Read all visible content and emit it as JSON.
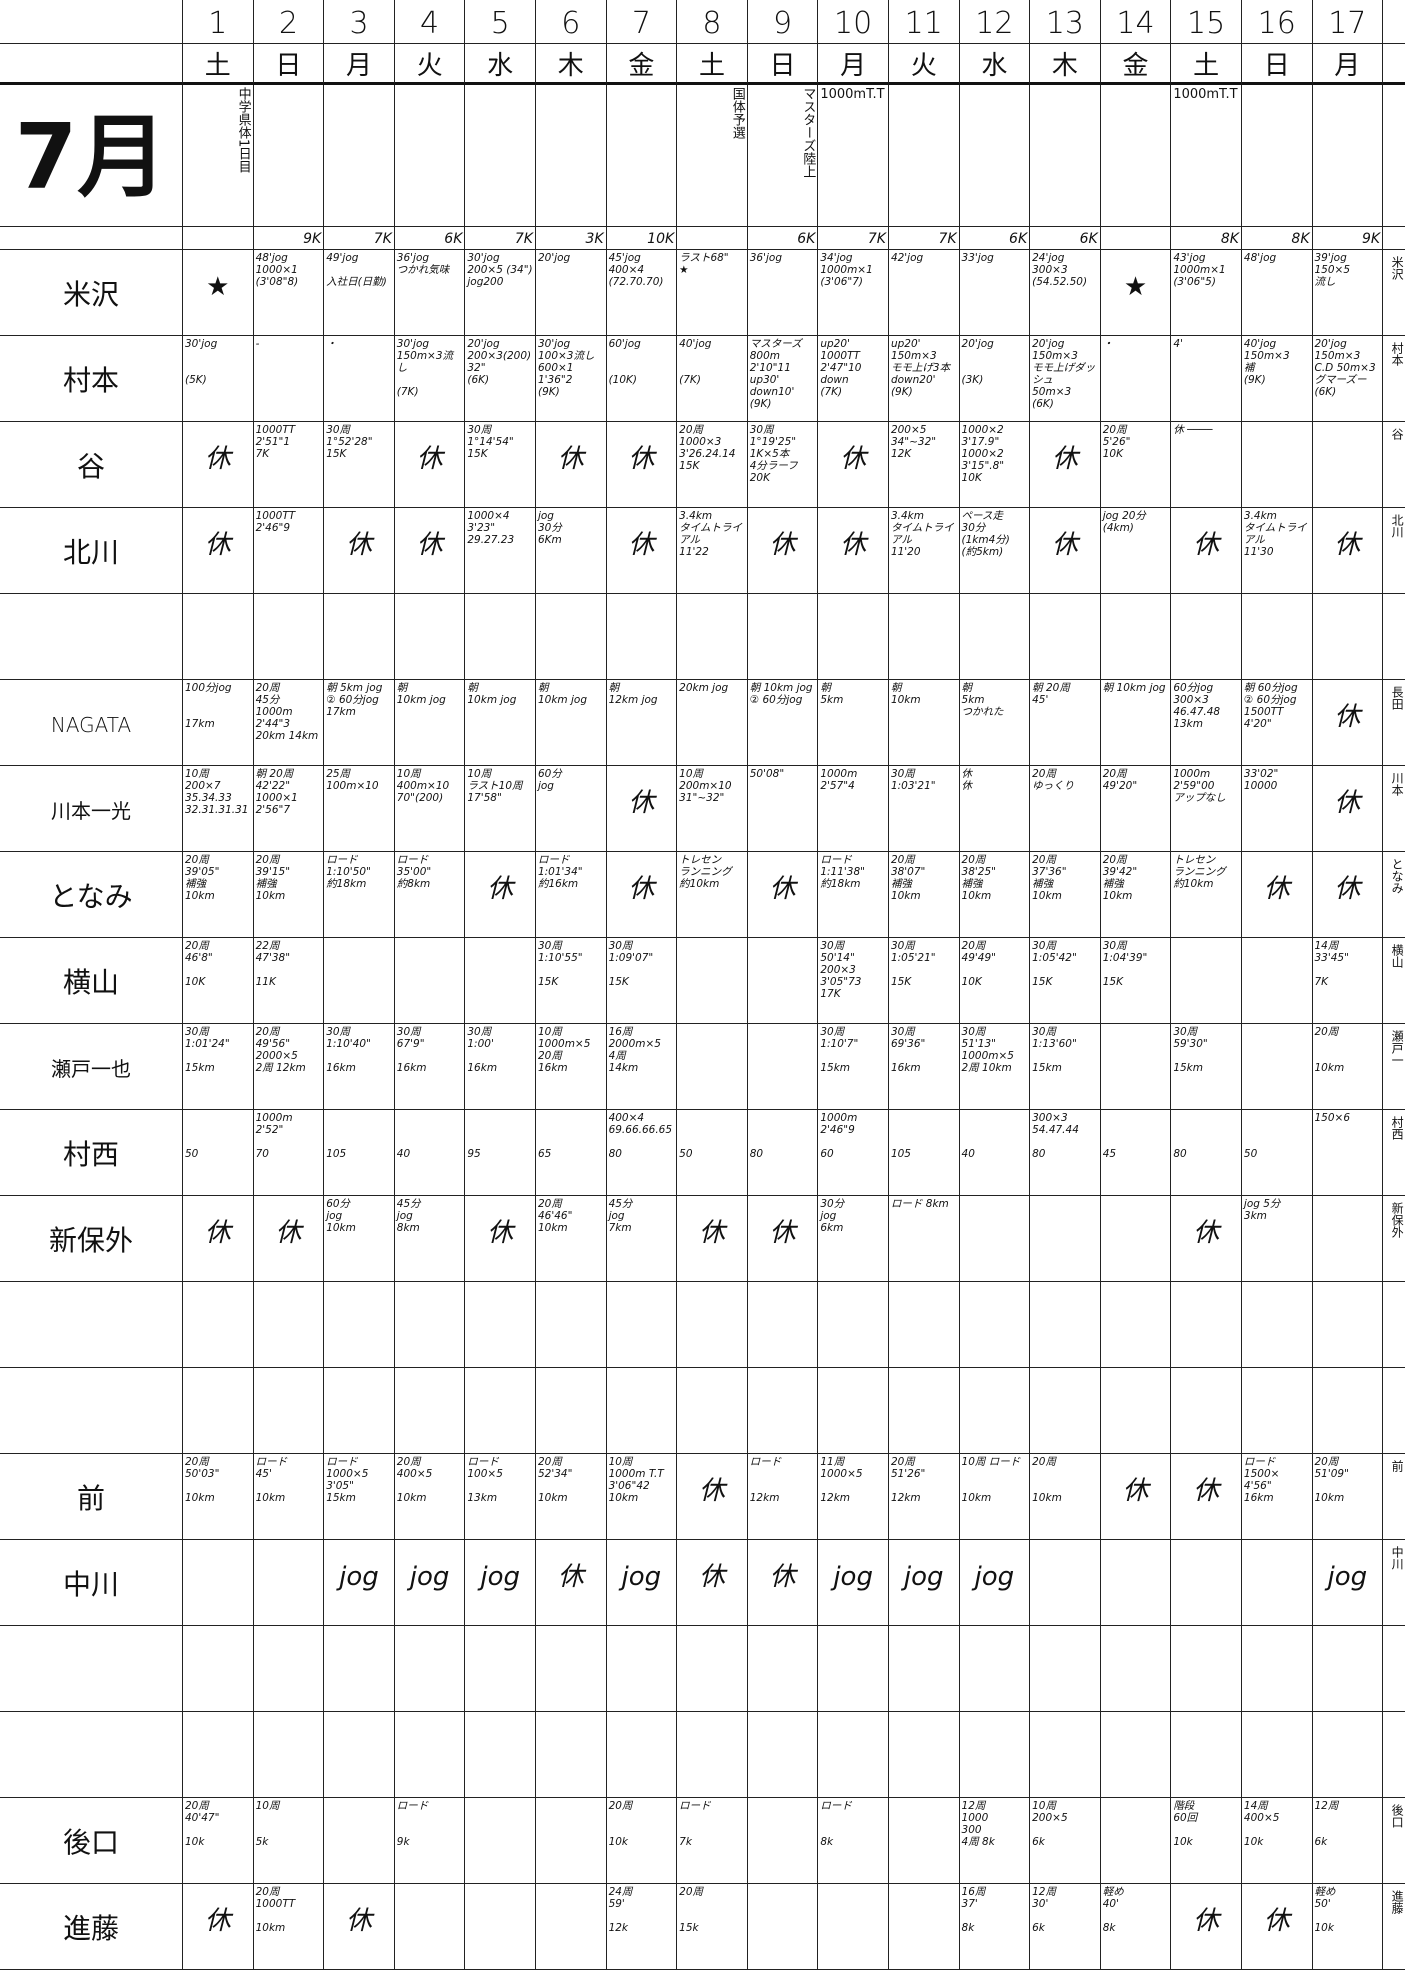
{
  "days": [
    "1",
    "2",
    "3",
    "4",
    "5",
    "6",
    "7",
    "8",
    "9",
    "10",
    "11",
    "12",
    "13",
    "14",
    "15",
    "16",
    "17"
  ],
  "weekdays": [
    "土",
    "日",
    "月",
    "火",
    "水",
    "木",
    "金",
    "土",
    "日",
    "月",
    "火",
    "水",
    "木",
    "金",
    "土",
    "日",
    "月"
  ],
  "month": "7月",
  "events": [
    "中学県体1日目",
    "",
    "",
    "",
    "",
    "",
    "",
    "国体予選",
    "マスターズ陸上",
    "1000mT.T",
    "",
    "",
    "",
    "",
    "1000mT.T",
    "",
    ""
  ],
  "daily_km": [
    "",
    "9K",
    "7K",
    "6K",
    "7K",
    "3K",
    "10K",
    "",
    "6K",
    "7K",
    "7K",
    "6K",
    "6K",
    "",
    "8K",
    "8K",
    "9K"
  ],
  "rows": [
    {
      "name": "米沢",
      "side": "米沢",
      "cells": [
        "★",
        "48'jog\n1000×1\n(3'08\"8)",
        "49'jog\n\n入社日(日勤)",
        "36'jog\nつかれ気味",
        "30'jog\n200×5 (34\")\njog200",
        "20'jog",
        "45'jog\n400×4\n(72.70.70)",
        "ラスト68\"\n★",
        "36'jog",
        "34'jog\n1000m×1\n(3'06\"7)",
        "42'jog",
        "33'jog",
        "24'jog\n300×3\n(54.52.50)",
        "★",
        "43'jog\n1000m×1\n(3'06\"5)",
        "48'jog",
        "39'jog\n150×5\n流し"
      ]
    },
    {
      "name": "村本",
      "side": "村本",
      "cells": [
        "30'jog\n\n\n(5K)",
        "-",
        "・",
        "30'jog\n150m×3流し\n\n(7K)",
        "20'jog\n200×3(200)\n32\"\n(6K)",
        "30'jog\n100×3流し\n600×1\n1'36\"2\n(9K)",
        "60'jog\n\n\n(10K)",
        "40'jog\n\n\n(7K)",
        "マスターズ\n800m\n2'10\"11\nup30' down10'\n(9K)",
        "up20'\n1000TT\n2'47\"10\ndown\n(7K)",
        "up20'\n150m×3\nモモ上げ3本\ndown20'\n(9K)",
        "20'jog\n\n\n(3K)",
        "20'jog\n150m×3\nモモ上げダッシュ\n50m×3\n(6K)",
        "・",
        "4'",
        "40'jog\n150m×3\n補\n(9K)",
        "20'jog\n150m×3\nC.D 50m×3\nグマーズー\n(6K)"
      ]
    },
    {
      "name": "谷",
      "side": "谷",
      "cells": [
        "休",
        "1000TT\n2'51\"1\n7K",
        "30周\n1°52'28\"\n15K",
        "休",
        "30周\n1°14'54\"\n15K",
        "休",
        "休",
        "20周\n1000×3\n3'26.24.14\n15K",
        "30周\n1°19'25\"\n1K×5本\n4分ラーフ 20K",
        "休",
        "200×5\n34\"~32\"\n12K",
        "1000×2\n3'17.9\"\n1000×2\n3'15\".8\"\n10K",
        "休",
        "20周\n5'26\"\n10K",
        "休 ────",
        "",
        ""
      ]
    },
    {
      "name": "北川",
      "side": "北川",
      "cells": [
        "休",
        "1000TT\n2'46\"9",
        "休",
        "休",
        "1000×4\n3'23\"\n29.27.23",
        "jog\n30分\n6Km",
        "休",
        "3.4km\nタイムトライアル\n11'22",
        "休",
        "休",
        "3.4km\nタイムトライアル\n11'20",
        "ペース走\n30分\n(1km4分)\n(約5km)",
        "休",
        "jog 20分\n(4km)",
        "休",
        "3.4km\nタイムトライアル\n11'30",
        "休"
      ]
    },
    {
      "name": "",
      "side": "",
      "cells": [
        "",
        "",
        "",
        "",
        "",
        "",
        "",
        "",
        "",
        "",
        "",
        "",
        "",
        "",
        "",
        "",
        ""
      ]
    },
    {
      "name": "NAGATA",
      "side": "長田",
      "cells": [
        "100分jog\n\n\n17km",
        "20周\n45分\n1000m\n2'44\"3\n20km 14km",
        "朝 5km jog\n② 60分jog\n17km",
        "朝\n10km jog",
        "朝\n10km jog",
        "朝\n10km jog",
        "朝\n12km jog",
        "20km jog",
        "朝 10km jog\n② 60分jog",
        "朝\n5km",
        "朝\n10km",
        "朝\n5km\nつかれた",
        "朝 20周\n45'",
        "朝 10km jog",
        "60分jog\n300×3\n46.47.48\n13km",
        "朝 60分jog\n② 60分jog\n1500TT 4'20\"",
        "休"
      ]
    },
    {
      "name": "川本一光",
      "side": "川本",
      "cells": [
        "10周\n200×7\n35.34.33\n32.31.31.31",
        "朝 20周\n42'22\"\n1000×1\n2'56\"7",
        "25周\n100m×10",
        "10周\n400m×10\n70\"(200)",
        "10周\nラスト10周\n17'58\"",
        "60分\njog",
        "休",
        "10周\n200m×10\n31\"~32\"",
        "50'08\"",
        "1000m\n2'57\"4",
        "30周\n1:03'21\"",
        "休\n休",
        "20周\nゆっくり",
        "20周\n49'20\"",
        "1000m\n2'59\"00\nアップなし",
        "33'02\"\n10000",
        "休"
      ]
    },
    {
      "name": "となみ",
      "side": "となみ",
      "cells": [
        "20周\n39'05\"\n補強\n10km",
        "20周\n39'15\"\n補強\n10km",
        "ロード\n1:10'50\"\n約18km",
        "ロード\n35'00\"\n約8km",
        "休",
        "ロード\n1:01'34\"\n約16km",
        "休",
        "トレセン\nランニング\n約10km",
        "休",
        "ロード\n1:11'38\"\n約18km",
        "20周\n38'07\"\n補強\n10km",
        "20周\n38'25\"\n補強\n10km",
        "20周\n37'36\"\n補強\n10km",
        "20周\n39'42\"\n補強\n10km",
        "トレセン\nランニング\n約10km",
        "休",
        "休"
      ]
    },
    {
      "name": "横山",
      "side": "横山",
      "cells": [
        "20周\n46'8\"\n\n10K",
        "22周\n47'38\"\n\n11K",
        "",
        "",
        "",
        "30周\n1:10'55\"\n\n15K",
        "30周\n1:09'07\"\n\n15K",
        "",
        "",
        "30周\n50'14\"\n200×3\n3'05\"73\n17K",
        "30周\n1:05'21\"\n\n15K",
        "20周\n49'49\"\n\n10K",
        "30周\n1:05'42\"\n\n15K",
        "30周\n1:04'39\"\n\n15K",
        "",
        "",
        "14周\n33'45\"\n\n7K"
      ]
    },
    {
      "name": "瀬戸一也",
      "side": "瀬戸一",
      "cells": [
        "30周\n1:01'24\"\n\n15km",
        "20周\n49'56\"\n2000×5\n2周 12km",
        "30周\n1:10'40\"\n\n16km",
        "30周\n67'9\"\n\n16km",
        "30周\n1:00'\n\n16km",
        "10周\n1000m×5\n20周\n16km",
        "16周\n2000m×5\n4周\n14km",
        "",
        "",
        "30周\n1:10'7\"\n\n15km",
        "30周\n69'36\"\n\n16km",
        "30周\n51'13\"\n1000m×5\n2周 10km",
        "30周\n1:13'60\"\n\n15km",
        "",
        "30周\n59'30\"\n\n15km",
        "",
        "20周\n\n\n10km"
      ]
    },
    {
      "name": "村西",
      "side": "村西",
      "cells": [
        "\n\n\n50",
        "1000m\n2'52\"\n\n70",
        "\n\n\n105",
        "\n\n\n40",
        "\n\n\n95",
        "\n\n\n65",
        "400×4\n69.66.66.65\n\n80",
        "\n\n\n50",
        "\n\n\n80",
        "1000m\n2'46\"9\n\n60",
        "\n\n\n105",
        "\n\n\n40",
        "300×3\n54.47.44\n\n80",
        "\n\n\n45",
        "\n\n\n80",
        "\n\n\n50",
        "150×6"
      ]
    },
    {
      "name": "新保外",
      "side": "新保外",
      "cells": [
        "休",
        "休",
        "60分\njog\n10km",
        "45分\njog\n8km",
        "休",
        "20周\n46'46\"\n10km",
        "45分\njog\n7km",
        "休",
        "休",
        "30分\njog\n6km",
        "ロード 8km",
        "",
        "",
        "",
        "休",
        "jog 5分\n3km",
        ""
      ]
    },
    {
      "name": "",
      "side": "",
      "cells": [
        "",
        "",
        "",
        "",
        "",
        "",
        "",
        "",
        "",
        "",
        "",
        "",
        "",
        "",
        "",
        "",
        ""
      ]
    },
    {
      "name": "",
      "side": "",
      "cells": [
        "",
        "",
        "",
        "",
        "",
        "",
        "",
        "",
        "",
        "",
        "",
        "",
        "",
        "",
        "",
        "",
        ""
      ]
    },
    {
      "name": "前",
      "side": "前",
      "cells": [
        "20周\n50'03\"\n\n10km",
        "ロード\n45'\n\n10km",
        "ロード\n1000×5\n3'05\"\n15km",
        "20周\n400×5\n\n10km",
        "ロード\n100×5\n\n13km",
        "20周\n52'34\"\n\n10km",
        "10周\n1000m T.T\n3'06\"42\n10km",
        "休",
        "ロード\n\n\n12km",
        "11周\n1000×5\n\n12km",
        "20周\n51'26\"\n\n12km",
        "10周 ロード\n\n\n10km",
        "20周\n\n\n10km",
        "休",
        "休",
        "ロード\n1500×\n4'56\"\n16km",
        "20周\n51'09\"\n\n10km"
      ]
    },
    {
      "name": "中川",
      "side": "中川",
      "cells": [
        "",
        "",
        "jog",
        "jog",
        "jog",
        "休",
        "jog",
        "休",
        "休",
        "jog",
        "jog",
        "jog",
        "",
        "",
        "",
        "",
        "jog"
      ]
    },
    {
      "name": "",
      "side": "",
      "cells": [
        "",
        "",
        "",
        "",
        "",
        "",
        "",
        "",
        "",
        "",
        "",
        "",
        "",
        "",
        "",
        "",
        ""
      ]
    },
    {
      "name": "",
      "side": "",
      "cells": [
        "",
        "",
        "",
        "",
        "",
        "",
        "",
        "",
        "",
        "",
        "",
        "",
        "",
        "",
        "",
        "",
        ""
      ]
    },
    {
      "name": "後口",
      "side": "後口",
      "cells": [
        "20周\n40'47\"\n\n10k",
        "10周\n\n\n5k",
        "",
        "ロード\n\n\n9k",
        "",
        "",
        "20周\n\n\n10k",
        "ロード\n\n\n7k",
        "",
        "ロード\n\n\n8k",
        "",
        "12周\n1000\n300\n4周 8k",
        "10周\n200×5\n\n6k",
        "",
        "階段\n60回\n\n10k",
        "14周\n400×5\n\n10k",
        "12周\n\n\n6k"
      ]
    },
    {
      "name": "進藤",
      "side": "進藤",
      "cells": [
        "休",
        "20周\n1000TT\n\n10km",
        "休",
        "",
        "",
        "",
        "24周\n59'\n\n12k",
        "20周\n\n\n15k",
        "",
        "",
        "",
        "16周\n37'\n\n8k",
        "12周\n30'\n\n6k",
        "軽め\n40'\n\n8k",
        "休",
        "休",
        "軽め\n50'\n\n10k"
      ]
    }
  ]
}
